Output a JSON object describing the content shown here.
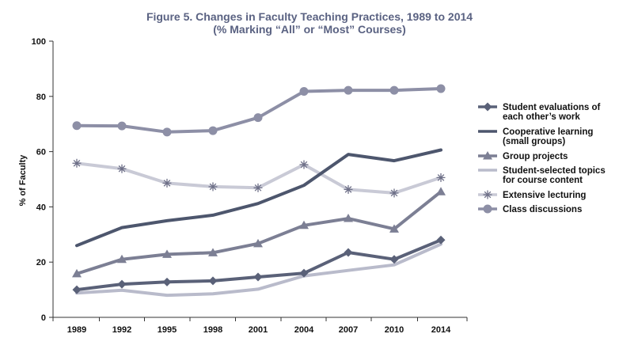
{
  "chart_data": {
    "type": "line",
    "title": "Figure 5. Changes in Faculty Teaching Practices, 1989 to 2014",
    "subtitle": "(% Marking “All” or “Most” Courses)",
    "xlabel": "",
    "ylabel": "% of Faculty",
    "categories": [
      "1989",
      "1992",
      "1995",
      "1998",
      "2001",
      "2004",
      "2007",
      "2010",
      "2014"
    ],
    "yticks": [
      "0",
      "20",
      "40",
      "60",
      "80",
      "100"
    ],
    "ylim": [
      0,
      100
    ],
    "grid": false,
    "legend_position": "right",
    "title_color": "#5a6282",
    "series": [
      {
        "name": "Student evaluations of each other’s work",
        "label_lines": [
          "Student evaluations of",
          "each other’s work"
        ],
        "values": [
          10.0,
          12.0,
          12.8,
          13.2,
          14.6,
          16.0,
          23.5,
          21.0,
          28.0
        ],
        "color": "#5a6178",
        "marker": "diamond"
      },
      {
        "name": "Cooperative learning (small groups)",
        "label_lines": [
          "Cooperative learning",
          "(small groups)"
        ],
        "values": [
          26.0,
          32.5,
          35.0,
          37.0,
          41.2,
          47.8,
          59.0,
          56.7,
          60.6
        ],
        "color": "#4d566d",
        "marker": "none"
      },
      {
        "name": "Group projects",
        "label_lines": [
          "Group projects"
        ],
        "values": [
          15.8,
          21.0,
          22.8,
          23.4,
          26.7,
          33.3,
          35.8,
          32.0,
          45.5
        ],
        "color": "#7c7f94",
        "marker": "triangle"
      },
      {
        "name": "Student-selected topics for course content",
        "label_lines": [
          "Student-selected topics",
          "for course content"
        ],
        "values": [
          8.8,
          9.8,
          8.0,
          8.5,
          10.2,
          15.0,
          17.0,
          19.0,
          26.5
        ],
        "color": "#b9bbcb",
        "marker": "none"
      },
      {
        "name": "Extensive lecturing",
        "label_lines": [
          "Extensive lecturing"
        ],
        "values": [
          55.8,
          53.8,
          48.6,
          47.3,
          46.9,
          55.3,
          46.3,
          45.0,
          50.6
        ],
        "color": "#c9cad6",
        "marker": "asterisk"
      },
      {
        "name": "Class discussions",
        "label_lines": [
          "Class discussions"
        ],
        "values": [
          69.4,
          69.3,
          67.1,
          67.6,
          72.3,
          81.8,
          82.2,
          82.2,
          82.8
        ],
        "color": "#8d8fa6",
        "marker": "circle"
      }
    ]
  }
}
